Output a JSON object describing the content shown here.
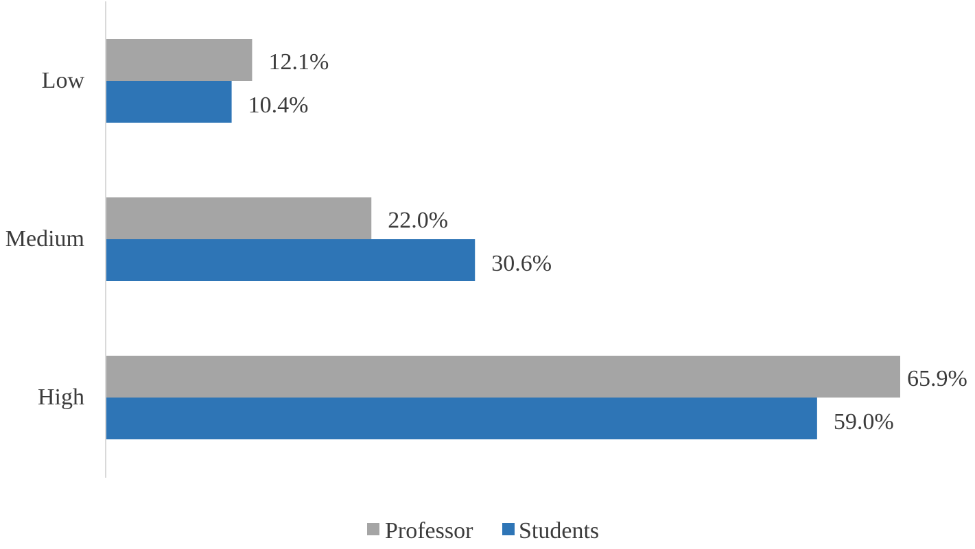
{
  "chart_data": {
    "type": "bar",
    "orientation": "horizontal",
    "categories": [
      "Low",
      "Medium",
      "High"
    ],
    "series": [
      {
        "name": "Professor",
        "color": "#a5a5a5",
        "values": [
          12.1,
          22.0,
          65.9
        ],
        "labels": [
          "12.1%",
          "22.0%",
          "65.9%"
        ]
      },
      {
        "name": "Students",
        "color": "#2e75b6",
        "values": [
          10.4,
          30.6,
          59.0
        ],
        "labels": [
          "10.4%",
          "30.6%",
          "59.0%"
        ]
      }
    ],
    "xlim": [
      0,
      66
    ],
    "grid": false,
    "legend": "bottom-center"
  }
}
